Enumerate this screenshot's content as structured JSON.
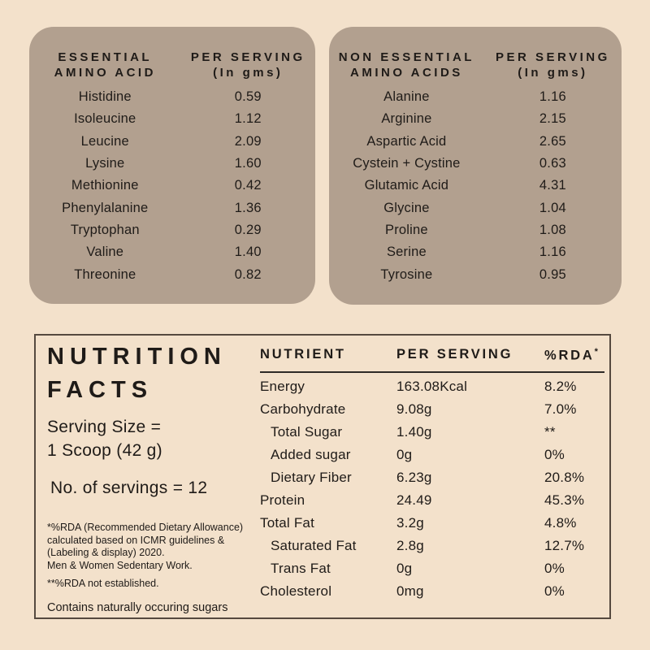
{
  "theme": {
    "page_bg": "#f3e1cb",
    "card_bg": "#b2a08f",
    "text_color": "#1f1b18",
    "box_border": "#55493f"
  },
  "essential_table": {
    "title_line1": "ESSENTIAL",
    "title_line2": "AMINO ACID",
    "value_header_line1": "PER SERVING",
    "value_header_line2": "(In gms)",
    "rows": [
      {
        "name": "Histidine",
        "value": "0.59"
      },
      {
        "name": "Isoleucine",
        "value": "1.12"
      },
      {
        "name": "Leucine",
        "value": "2.09"
      },
      {
        "name": "Lysine",
        "value": "1.60"
      },
      {
        "name": "Methionine",
        "value": "0.42"
      },
      {
        "name": "Phenylalanine",
        "value": "1.36"
      },
      {
        "name": "Tryptophan",
        "value": "0.29"
      },
      {
        "name": "Valine",
        "value": "1.40"
      },
      {
        "name": "Threonine",
        "value": "0.82"
      }
    ]
  },
  "non_essential_table": {
    "title_line1": "NON ESSENTIAL",
    "title_line2": "AMINO ACIDS",
    "value_header_line1": "PER SERVING",
    "value_header_line2": "(In gms)",
    "rows": [
      {
        "name": "Alanine",
        "value": "1.16"
      },
      {
        "name": "Arginine",
        "value": "2.15"
      },
      {
        "name": "Aspartic Acid",
        "value": "2.65"
      },
      {
        "name": "Cystein + Cystine",
        "value": "0.63"
      },
      {
        "name": "Glutamic Acid",
        "value": "4.31"
      },
      {
        "name": "Glycine",
        "value": "1.04"
      },
      {
        "name": "Proline",
        "value": "1.08"
      },
      {
        "name": "Serine",
        "value": "1.16"
      },
      {
        "name": "Tyrosine",
        "value": "0.95"
      }
    ]
  },
  "nutrition_facts": {
    "title_line1": "NUTRITION",
    "title_line2": "FACTS",
    "serving_size_line1": "Serving Size =",
    "serving_size_line2": "1 Scoop (42 g)",
    "servings_count": "No. of servings = 12",
    "footnote1_lines": [
      "*%RDA (Recommended Dietary Allowance)",
      "calculated based on ICMR guidelines &",
      "(Labeling & display) 2020.",
      "Men & Women Sedentary Work."
    ],
    "footnote2": "**%RDA not established.",
    "footnote3": "Contains naturally occuring sugars",
    "table": {
      "header_nutrient": "NUTRIENT",
      "header_serving": "PER SERVING",
      "header_rda": "%RDA",
      "header_rda_sup": "*",
      "rows": [
        {
          "name": "Energy",
          "indent": false,
          "serving": "163.08Kcal",
          "rda": "8.2%"
        },
        {
          "name": "Carbohydrate",
          "indent": false,
          "serving": "9.08g",
          "rda": "7.0%"
        },
        {
          "name": "Total Sugar",
          "indent": true,
          "serving": "1.40g",
          "rda": "**"
        },
        {
          "name": "Added sugar",
          "indent": true,
          "serving": "0g",
          "rda": "0%"
        },
        {
          "name": "Dietary Fiber",
          "indent": true,
          "serving": "6.23g",
          "rda": "20.8%"
        },
        {
          "name": "Protein",
          "indent": false,
          "serving": "24.49",
          "rda": "45.3%"
        },
        {
          "name": "Total Fat",
          "indent": false,
          "serving": "3.2g",
          "rda": "4.8%"
        },
        {
          "name": "Saturated Fat",
          "indent": true,
          "serving": "2.8g",
          "rda": "12.7%"
        },
        {
          "name": "Trans Fat",
          "indent": true,
          "serving": "0g",
          "rda": "0%"
        },
        {
          "name": "Cholesterol",
          "indent": false,
          "serving": "0mg",
          "rda": "0%"
        }
      ]
    }
  }
}
